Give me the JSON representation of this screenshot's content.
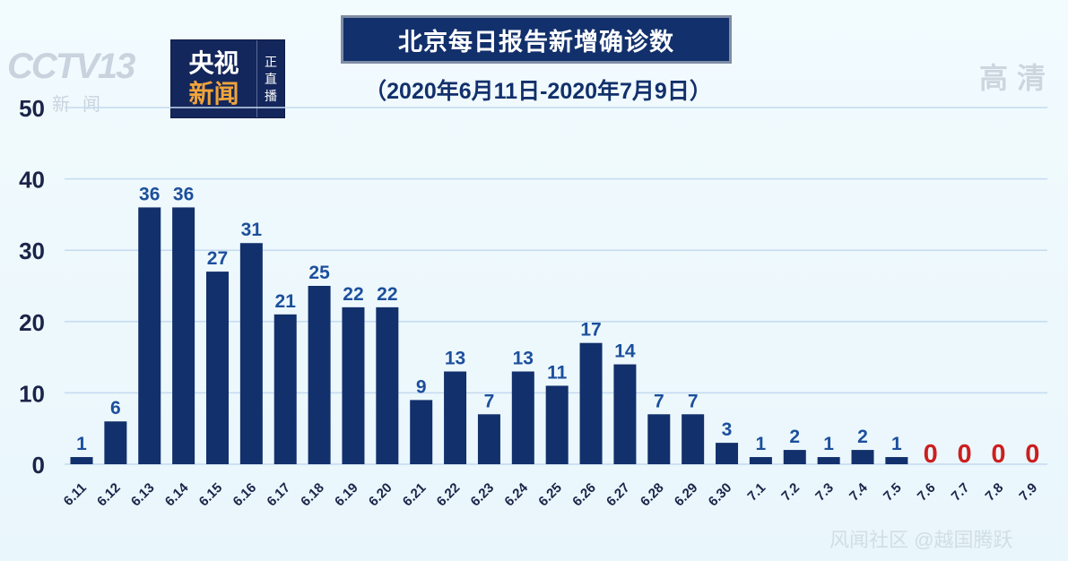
{
  "header": {
    "title": "北京每日报告新增确诊数",
    "subtitle": "（2020年6月11日-2020年7月9日）",
    "channel_logo": "CCTV13",
    "channel_sub": "新闻",
    "badge_line1": "央视",
    "badge_line2": "新闻",
    "badge_side": [
      "正",
      "直",
      "播"
    ],
    "hd_mark": "高清",
    "watermark": "风闻社区 @越国腾跃"
  },
  "colors": {
    "bar": "#12306b",
    "zero_label": "#cc1f1f",
    "grid": "#c5daf0",
    "axis_text": "#1b2448",
    "label": "#1c4f9c"
  },
  "chart_data": {
    "type": "bar",
    "title": "北京每日报告新增确诊数",
    "subtitle": "（2020年6月11日-2020年7月9日）",
    "xlabel": "",
    "ylabel": "",
    "ylim": [
      0,
      50
    ],
    "yticks": [
      0,
      10,
      20,
      30,
      40,
      50
    ],
    "grid": true,
    "categories": [
      "6.11",
      "6.12",
      "6.13",
      "6.14",
      "6.15",
      "6.16",
      "6.17",
      "6.18",
      "6.19",
      "6.20",
      "6.21",
      "6.22",
      "6.23",
      "6.24",
      "6.25",
      "6.26",
      "6.27",
      "6.28",
      "6.29",
      "6.30",
      "7.1",
      "7.2",
      "7.3",
      "7.4",
      "7.5",
      "7.6",
      "7.7",
      "7.8",
      "7.9"
    ],
    "values": [
      1,
      6,
      36,
      36,
      27,
      31,
      21,
      25,
      22,
      22,
      9,
      13,
      7,
      13,
      11,
      17,
      14,
      7,
      7,
      3,
      1,
      2,
      1,
      2,
      1,
      0,
      0,
      0,
      0
    ]
  }
}
